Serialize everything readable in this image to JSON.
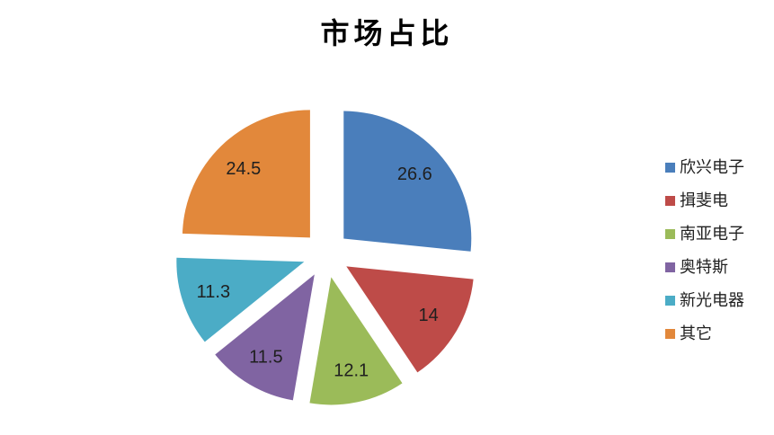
{
  "page": {
    "background": "#ffffff"
  },
  "header": {
    "title": "市场占比"
  },
  "chart_data": {
    "type": "pie",
    "title": "市场占比",
    "labels": [
      "欣兴电子",
      "揖斐电",
      "南亚电子",
      "奥特斯",
      "新光电器",
      "其它"
    ],
    "values": [
      26.6,
      14,
      12.1,
      11.5,
      11.3,
      24.5
    ],
    "display_labels": [
      "26.6",
      "14",
      "12.1",
      "11.5",
      "11.3",
      "24.5"
    ],
    "colors": [
      "#4A7EBB",
      "#BE4B48",
      "#9BBB59",
      "#8064A2",
      "#4BACC6",
      "#E2883B"
    ],
    "legend_position": "right",
    "start_angle_deg": 0,
    "direction": "clockwise",
    "exploded": true,
    "data_label_color": "#1f1f1f"
  }
}
